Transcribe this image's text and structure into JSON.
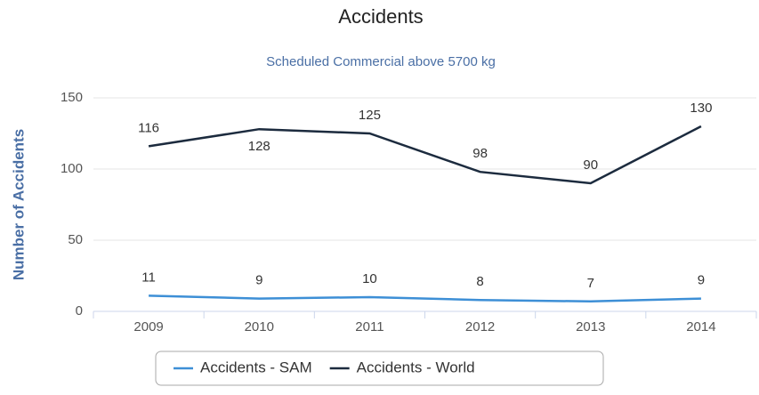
{
  "chart_data": {
    "type": "line",
    "title": "Accidents",
    "subtitle": "Scheduled Commercial above 5700 kg",
    "y_label": "Number of Accidents",
    "categories": [
      "2009",
      "2010",
      "2011",
      "2012",
      "2013",
      "2014"
    ],
    "series": [
      {
        "name": "Accidents - SAM",
        "color": "#3d8fd6",
        "values": [
          11,
          9,
          10,
          8,
          7,
          9
        ]
      },
      {
        "name": "Accidents - World",
        "color": "#1c2b3e",
        "values": [
          116,
          128,
          125,
          98,
          90,
          130
        ]
      }
    ],
    "ylim": [
      0,
      150
    ],
    "yticks": [
      0,
      50,
      100,
      150
    ],
    "grid": true,
    "legend": "bottom"
  }
}
